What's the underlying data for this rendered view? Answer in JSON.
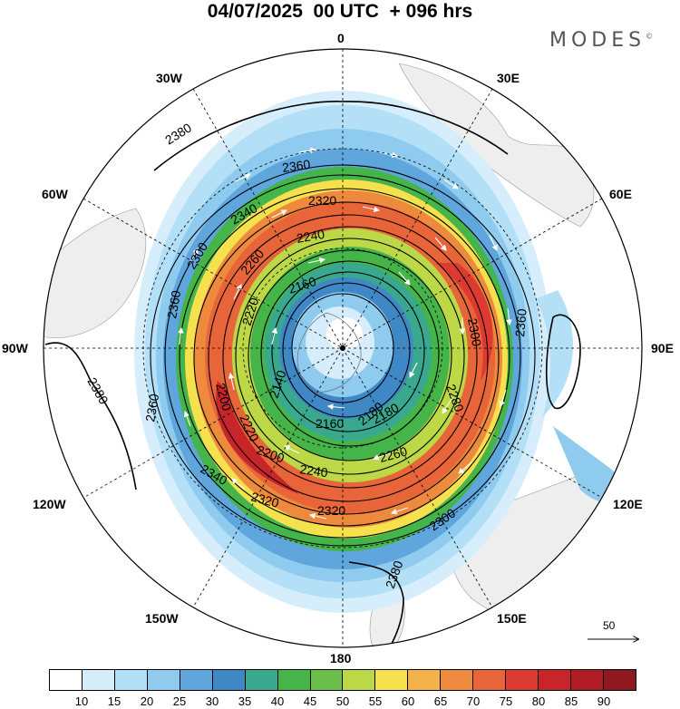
{
  "title": "04/07/2025  00 UTC  + 096 hrs",
  "brand": {
    "name": "MODES",
    "mark": "©"
  },
  "lon_labels": {
    "top": "0",
    "top_left": "30W",
    "top_right": "30E",
    "left_upper": "60W",
    "right_upper": "60E",
    "left": "90W",
    "right": "90E",
    "left_lower": "120W",
    "right_lower": "120E",
    "bottom_left": "150W",
    "bottom_right": "150E",
    "bottom": "180"
  },
  "contour_labels": [
    "2380",
    "2360",
    "2340",
    "2320",
    "2300",
    "2280",
    "2260",
    "2240",
    "2220",
    "2200",
    "2180",
    "2160",
    "2140",
    "2380",
    "2360",
    "2380",
    "2360",
    "2340",
    "2320",
    "2300",
    "2260",
    "2240",
    "2220",
    "2320",
    "2300",
    "2200",
    "2180",
    "2160",
    "2360"
  ],
  "vector_reference": {
    "label": "50"
  },
  "colorbar": {
    "colors": [
      "#ffffff",
      "#d6eefb",
      "#b3e0f7",
      "#8ecbef",
      "#5fa6dd",
      "#3f88c5",
      "#3aa88f",
      "#45b54a",
      "#6bc04b",
      "#bcd847",
      "#f5e14d",
      "#f4b24a",
      "#ee8a3e",
      "#e8653a",
      "#dd3b32",
      "#c8252b",
      "#b11c25",
      "#8e1720"
    ],
    "ticks": [
      "10",
      "15",
      "20",
      "25",
      "30",
      "35",
      "40",
      "45",
      "50",
      "55",
      "60",
      "65",
      "70",
      "75",
      "80",
      "85",
      "90"
    ]
  }
}
